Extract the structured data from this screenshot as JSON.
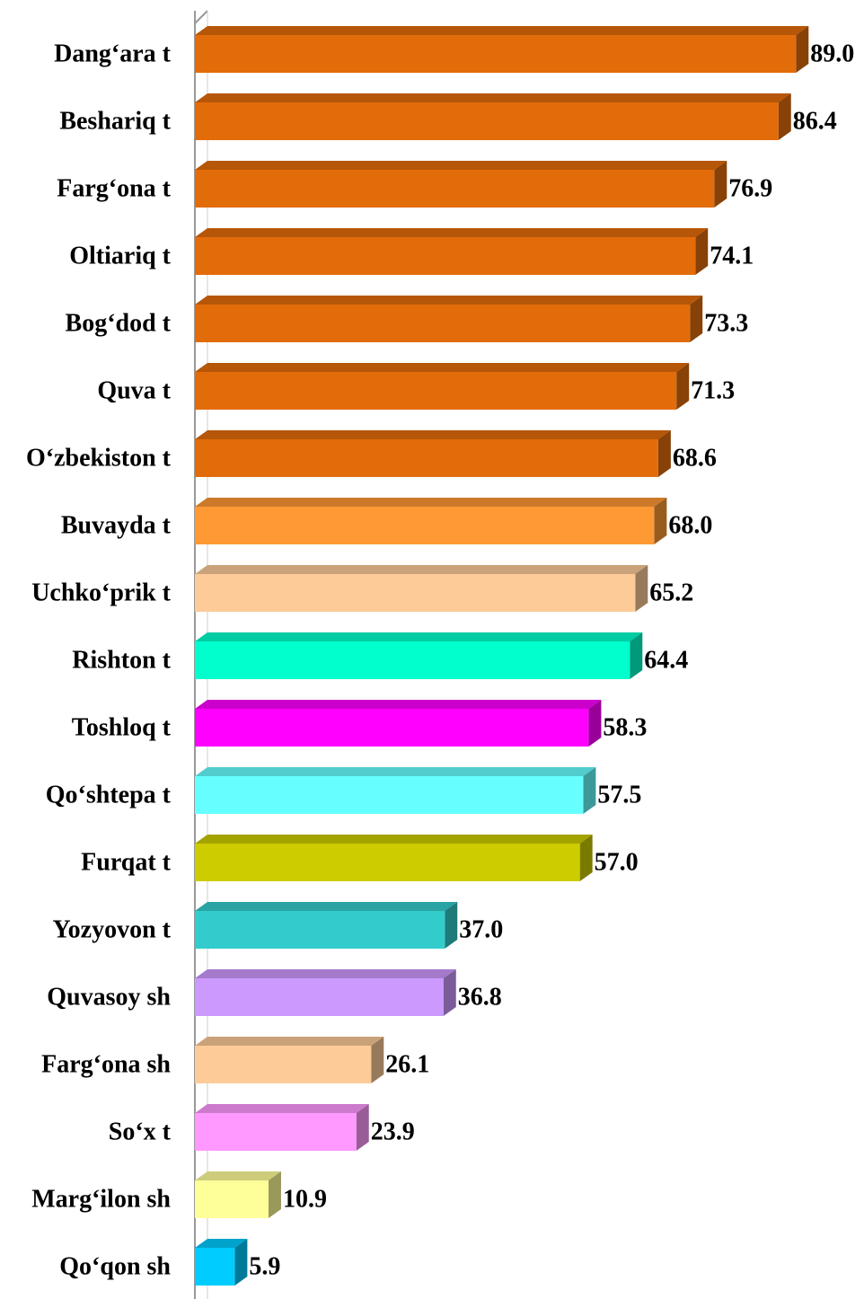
{
  "chart_data": {
    "type": "bar",
    "orientation": "horizontal",
    "categories": [
      "Dang‘ara t",
      "Beshariq t",
      "Farg‘ona t",
      "Oltiariq t",
      "Bog‘dod t",
      "Quva t",
      "O‘zbekiston t",
      "Buvayda t",
      "Uchko‘prik t",
      "Rishton t",
      "Toshloq t",
      "Qo‘shtepa t",
      "Furqat t",
      "Yozyovon t",
      "Quvasoy sh",
      "Farg‘ona sh",
      "So‘x t",
      "Marg‘ilon sh",
      "Qo‘qon sh"
    ],
    "values": [
      89.0,
      86.4,
      76.9,
      74.1,
      73.3,
      71.3,
      68.6,
      68.0,
      65.2,
      64.4,
      58.3,
      57.5,
      57.0,
      37.0,
      36.8,
      26.1,
      23.9,
      10.9,
      5.9
    ],
    "value_labels": [
      "89.0",
      "86.4",
      "76.9",
      "74.1",
      "73.3",
      "71.3",
      "68.6",
      "68.0",
      "65.2",
      "64.4",
      "58.3",
      "57.5",
      "57.0",
      "37.0",
      "36.8",
      "26.1",
      "23.9",
      "10.9",
      "5.9"
    ],
    "colors": [
      "#e36c0a",
      "#e36c0a",
      "#e36c0a",
      "#e36c0a",
      "#e36c0a",
      "#e36c0a",
      "#e36c0a",
      "#ff9933",
      "#fccb98",
      "#00ffcc",
      "#ff00ff",
      "#66ffff",
      "#cccc00",
      "#33cccc",
      "#cc99ff",
      "#fccb98",
      "#ff99ff",
      "#ffff99",
      "#00ccff"
    ]
  }
}
